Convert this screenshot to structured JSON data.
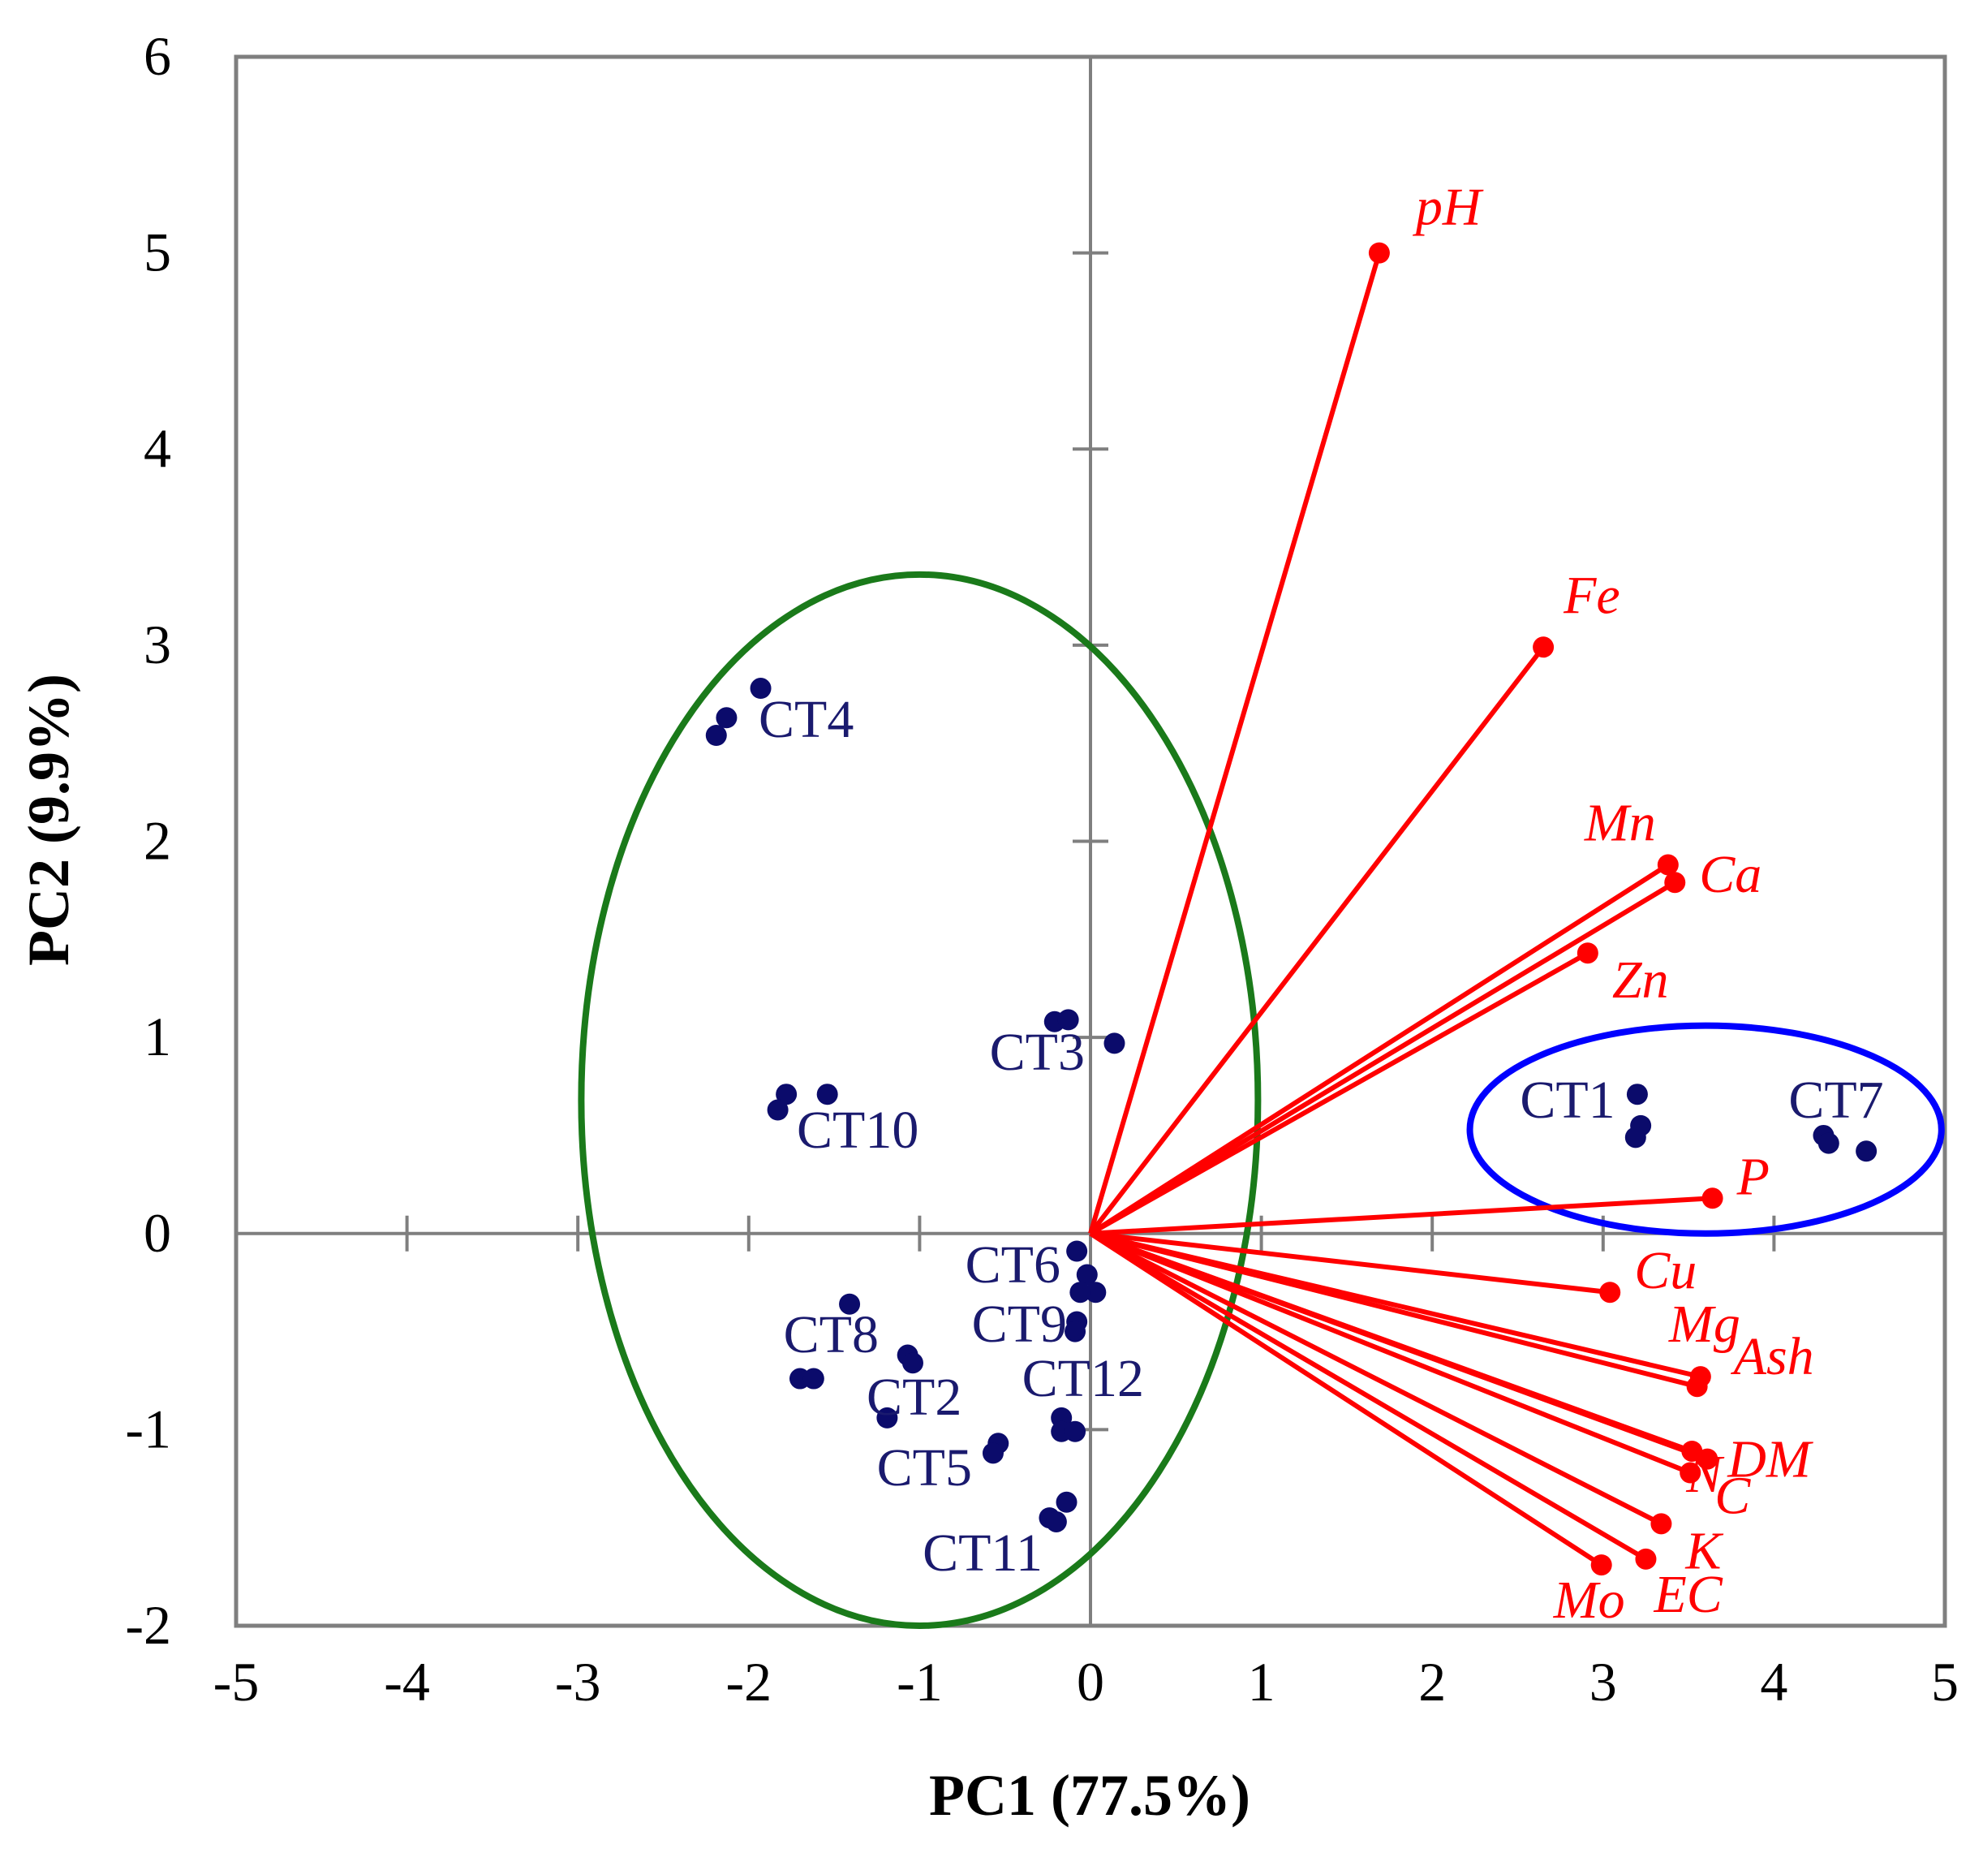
{
  "chart_data": {
    "type": "scatter",
    "subtype": "pca-biplot",
    "xlabel": "PC1 (77.5%)",
    "ylabel": "PC2 (9.9%)",
    "xlim": [
      -5,
      5
    ],
    "ylim": [
      -2,
      6
    ],
    "xticks": [
      "-5",
      "-4",
      "-3",
      "-2",
      "-1",
      "0",
      "1",
      "2",
      "3",
      "4",
      "5"
    ],
    "yticks": [
      "-2",
      "-1",
      "0",
      "1",
      "2",
      "3",
      "4",
      "5",
      "6"
    ],
    "colors": {
      "samples": "#0b0b6b",
      "variables": "#ff0000",
      "ellipse_left": "#1a7a1a",
      "ellipse_right": "#0000ff",
      "frame": "#7f7f7f"
    },
    "samples": [
      {
        "label": "CT4",
        "points": [
          [
            -1.93,
            2.78
          ],
          [
            -2.13,
            2.63
          ],
          [
            -2.19,
            2.54
          ]
        ]
      },
      {
        "label": "CT10",
        "points": [
          [
            -1.78,
            0.71
          ],
          [
            -1.54,
            0.71
          ],
          [
            -1.83,
            0.63
          ]
        ]
      },
      {
        "label": "CT3",
        "points": [
          [
            -0.21,
            1.08
          ],
          [
            -0.13,
            1.09
          ],
          [
            0.14,
            0.97
          ]
        ]
      },
      {
        "label": "CT6",
        "points": [
          [
            -0.08,
            -0.09
          ],
          [
            -0.02,
            -0.21
          ]
        ]
      },
      {
        "label": "CT9",
        "points": [
          [
            0.03,
            -0.3
          ],
          [
            -0.06,
            -0.3
          ],
          [
            -0.08,
            -0.45
          ],
          [
            -0.09,
            -0.5
          ]
        ]
      },
      {
        "label": "CT12",
        "points": [
          [
            -0.17,
            -0.94
          ],
          [
            -0.17,
            -1.01
          ],
          [
            -0.09,
            -1.01
          ]
        ]
      },
      {
        "label": "CT8",
        "points": [
          [
            -1.41,
            -0.36
          ],
          [
            -1.7,
            -0.74
          ],
          [
            -1.62,
            -0.74
          ]
        ]
      },
      {
        "label": "CT2",
        "points": [
          [
            -1.07,
            -0.62
          ],
          [
            -1.04,
            -0.66
          ],
          [
            -1.19,
            -0.94
          ]
        ]
      },
      {
        "label": "CT5",
        "points": [
          [
            -0.54,
            -1.07
          ],
          [
            -0.57,
            -1.12
          ]
        ]
      },
      {
        "label": "CT11",
        "points": [
          [
            -0.14,
            -1.37
          ],
          [
            -0.24,
            -1.45
          ],
          [
            -0.2,
            -1.47
          ]
        ]
      },
      {
        "label": "CT1",
        "points": [
          [
            3.2,
            0.71
          ],
          [
            3.22,
            0.55
          ],
          [
            3.19,
            0.49
          ]
        ]
      },
      {
        "label": "CT7",
        "points": [
          [
            4.29,
            0.5
          ],
          [
            4.32,
            0.46
          ],
          [
            4.54,
            0.42
          ]
        ]
      }
    ],
    "variables": [
      {
        "label": "pH",
        "x": 1.69,
        "y": 5.0
      },
      {
        "label": "Fe",
        "x": 2.65,
        "y": 2.99
      },
      {
        "label": "Mn",
        "x": 3.38,
        "y": 1.88
      },
      {
        "label": "Ca",
        "x": 3.42,
        "y": 1.79
      },
      {
        "label": "Zn",
        "x": 2.91,
        "y": 1.43
      },
      {
        "label": "P",
        "x": 3.64,
        "y": 0.18
      },
      {
        "label": "Cu",
        "x": 3.04,
        "y": -0.3
      },
      {
        "label": "Mg",
        "x": 3.57,
        "y": -0.73
      },
      {
        "label": "Ash",
        "x": 3.55,
        "y": -0.78
      },
      {
        "label": "N",
        "x": 3.52,
        "y": -1.11
      },
      {
        "label": "DM",
        "x": 3.61,
        "y": -1.15
      },
      {
        "label": "C",
        "x": 3.51,
        "y": -1.22
      },
      {
        "label": "K",
        "x": 3.34,
        "y": -1.48
      },
      {
        "label": "EC",
        "x": 3.25,
        "y": -1.66
      },
      {
        "label": "Mo",
        "x": 2.99,
        "y": -1.69
      }
    ],
    "ellipses": [
      {
        "name": "ellipse-left-group",
        "cx": -1.0,
        "cy": 0.68,
        "rx": 1.98,
        "ry": 2.68,
        "color": "#1a7a1a"
      },
      {
        "name": "ellipse-right-group",
        "cx": 3.6,
        "cy": 0.53,
        "rx": 1.38,
        "ry": 0.53,
        "color": "#0000ff"
      }
    ]
  }
}
